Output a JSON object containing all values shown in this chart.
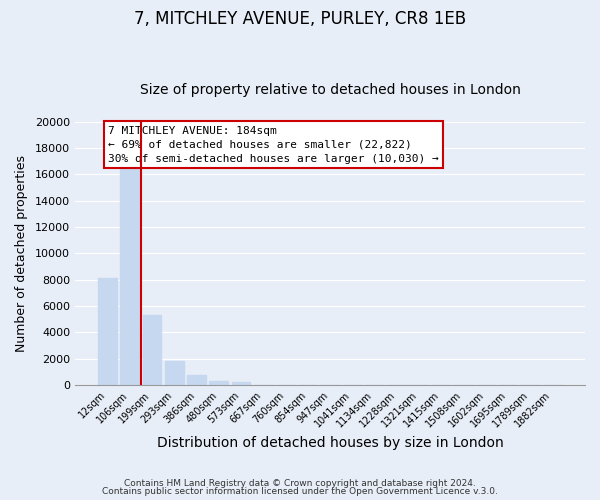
{
  "title": "7, MITCHLEY AVENUE, PURLEY, CR8 1EB",
  "subtitle": "Size of property relative to detached houses in London",
  "xlabel": "Distribution of detached houses by size in London",
  "ylabel": "Number of detached properties",
  "categories": [
    "12sqm",
    "106sqm",
    "199sqm",
    "293sqm",
    "386sqm",
    "480sqm",
    "573sqm",
    "667sqm",
    "760sqm",
    "854sqm",
    "947sqm",
    "1041sqm",
    "1134sqm",
    "1228sqm",
    "1321sqm",
    "1415sqm",
    "1508sqm",
    "1602sqm",
    "1695sqm",
    "1789sqm",
    "1882sqm"
  ],
  "values": [
    8100,
    16500,
    5300,
    1800,
    750,
    300,
    200,
    0,
    0,
    0,
    0,
    0,
    0,
    0,
    0,
    0,
    0,
    0,
    0,
    0,
    0
  ],
  "bar_color": "#c5d8f0",
  "vline_color": "#cc0000",
  "vline_pos": 1.5,
  "ylim": [
    0,
    20000
  ],
  "yticks": [
    0,
    2000,
    4000,
    6000,
    8000,
    10000,
    12000,
    14000,
    16000,
    18000,
    20000
  ],
  "annotation_title": "7 MITCHLEY AVENUE: 184sqm",
  "annotation_line1": "← 69% of detached houses are smaller (22,822)",
  "annotation_line2": "30% of semi-detached houses are larger (10,030) →",
  "footer1": "Contains HM Land Registry data © Crown copyright and database right 2024.",
  "footer2": "Contains public sector information licensed under the Open Government Licence v.3.0.",
  "background_color": "#e8eef8",
  "plot_background_color": "#e8eef8",
  "grid_color": "#ffffff",
  "title_fontsize": 12,
  "subtitle_fontsize": 10,
  "ylabel_fontsize": 9,
  "xlabel_fontsize": 10,
  "tick_label_fontsize": 7,
  "ytick_fontsize": 8,
  "footer_fontsize": 6.5,
  "annotation_fontsize": 8
}
